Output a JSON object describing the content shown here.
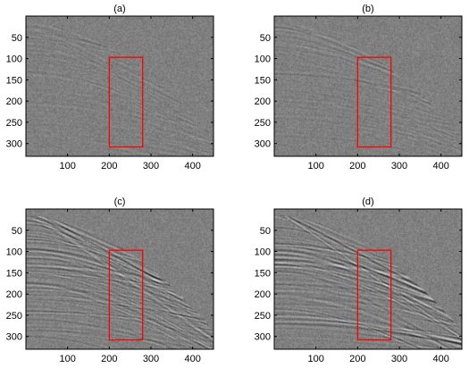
{
  "chart_data": [
    {
      "type": "heatmap",
      "title": "(a)",
      "xlim": [
        0,
        450
      ],
      "ylim": [
        330,
        0
      ],
      "xticks": [
        100,
        200,
        300,
        400
      ],
      "yticks": [
        50,
        100,
        150,
        200,
        250,
        300
      ],
      "colormap": "gray",
      "highlight_box": {
        "x": [
          200,
          280
        ],
        "y": [
          97,
          308
        ],
        "color": "#ff0000"
      },
      "amplitude": 0.25
    },
    {
      "type": "heatmap",
      "title": "(b)",
      "xlim": [
        0,
        450
      ],
      "ylim": [
        330,
        0
      ],
      "xticks": [
        100,
        200,
        300,
        400
      ],
      "yticks": [
        50,
        100,
        150,
        200,
        250,
        300
      ],
      "colormap": "gray",
      "highlight_box": {
        "x": [
          200,
          280
        ],
        "y": [
          97,
          308
        ],
        "color": "#ff0000"
      },
      "amplitude": 0.3
    },
    {
      "type": "heatmap",
      "title": "(c)",
      "xlim": [
        0,
        450
      ],
      "ylim": [
        330,
        0
      ],
      "xticks": [
        100,
        200,
        300,
        400
      ],
      "yticks": [
        50,
        100,
        150,
        200,
        250,
        300
      ],
      "colormap": "gray",
      "highlight_box": {
        "x": [
          200,
          280
        ],
        "y": [
          97,
          308
        ],
        "color": "#ff0000"
      },
      "amplitude": 0.9
    },
    {
      "type": "heatmap",
      "title": "(d)",
      "xlim": [
        0,
        450
      ],
      "ylim": [
        330,
        0
      ],
      "xticks": [
        100,
        200,
        300,
        400
      ],
      "yticks": [
        50,
        100,
        150,
        200,
        250,
        300
      ],
      "colormap": "gray",
      "highlight_box": {
        "x": [
          200,
          280
        ],
        "y": [
          97,
          308
        ],
        "color": "#ff0000"
      },
      "amplitude": 1.0
    }
  ]
}
